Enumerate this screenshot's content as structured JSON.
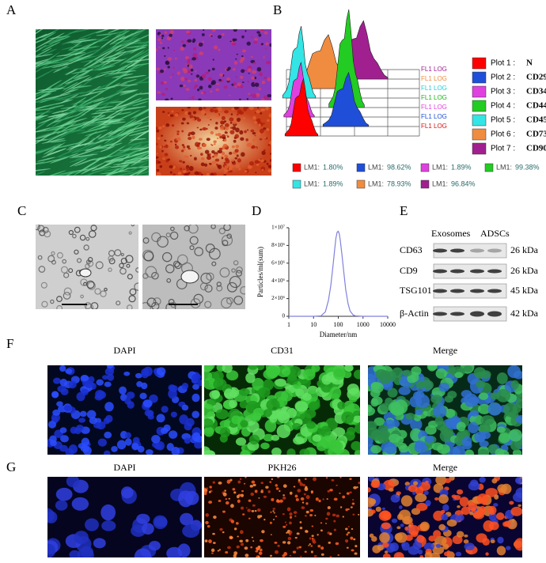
{
  "panel_labels": [
    "A",
    "B",
    "C",
    "D",
    "E",
    "F",
    "G"
  ],
  "flow": {
    "axis_labels": [
      {
        "text": "FL1 LOG",
        "color": "#a0208f"
      },
      {
        "text": "FL1 LOG",
        "color": "#f08c40"
      },
      {
        "text": "FL1 LOG",
        "color": "#20d0d8"
      },
      {
        "text": "FL1 LOG",
        "color": "#18b818"
      },
      {
        "text": "FL1 LOG",
        "color": "#e040e0"
      },
      {
        "text": "FL1 LOG",
        "color": "#1f4fd8"
      },
      {
        "text": "FL1 LOG",
        "color": "#e01010"
      }
    ],
    "legend": [
      {
        "plot": "Plot 1 :",
        "marker": "N",
        "color": "#ff0000"
      },
      {
        "plot": "Plot 2 :",
        "marker": "CD29",
        "color": "#1f4fd8"
      },
      {
        "plot": "Plot 3 :",
        "marker": "CD34",
        "color": "#e040e0"
      },
      {
        "plot": "Plot 4 :",
        "marker": "CD44",
        "color": "#22cc22"
      },
      {
        "plot": "Plot 5 :",
        "marker": "CD45",
        "color": "#33e5e5"
      },
      {
        "plot": "Plot 6 :",
        "marker": "CD73",
        "color": "#f08c40"
      },
      {
        "plot": "Plot 7 :",
        "marker": "CD90",
        "color": "#a0208f"
      }
    ],
    "stats": [
      {
        "label": "LM1:",
        "value": "1.80%",
        "color": "#ff0000"
      },
      {
        "label": "LM1:",
        "value": "98.62%",
        "color": "#1f4fd8"
      },
      {
        "label": "LM1:",
        "value": "1.89%",
        "color": "#e040e0"
      },
      {
        "label": "LM1:",
        "value": "99.38%",
        "color": "#22cc22"
      },
      {
        "label": "LM1:",
        "value": "1.89%",
        "color": "#33e5e5"
      },
      {
        "label": "LM1:",
        "value": "78.93%",
        "color": "#f08c40"
      },
      {
        "label": "LM1:",
        "value": "96.84%",
        "color": "#a0208f"
      }
    ]
  },
  "chart_data": {
    "type": "line",
    "ylabel": "Particles/ml(sum)",
    "xlabel": "Diameter/nm",
    "xlog": true,
    "xlim": [
      1,
      10000
    ],
    "xticks": [
      1,
      10,
      100,
      1000,
      10000
    ],
    "ylim": [
      0,
      10000000
    ],
    "yticks": [
      0,
      {
        "value": 2000000,
        "label": "2×10⁶"
      },
      {
        "value": 4000000,
        "label": "4×10⁶"
      },
      {
        "value": 6000000,
        "label": "6×10⁶"
      },
      {
        "value": 8000000,
        "label": "8×10⁶"
      },
      {
        "value": 10000000,
        "label": "1×10⁷"
      }
    ],
    "color": "#8080e0",
    "x": [
      1,
      10,
      20,
      30,
      40,
      50,
      60,
      70,
      80,
      90,
      100,
      110,
      120,
      140,
      170,
      200,
      250,
      300,
      400,
      500,
      1000,
      10000
    ],
    "values": [
      0,
      0,
      50000,
      500000,
      1800000,
      3500000,
      5500000,
      7300000,
      8800000,
      9500000,
      9600000,
      9300000,
      8600000,
      7000000,
      4800000,
      3000000,
      1400000,
      600000,
      150000,
      50000,
      0,
      0
    ]
  },
  "western": {
    "columns": [
      "Exosomes",
      "ADSCs"
    ],
    "rows": [
      {
        "protein": "CD63",
        "size": "26 kDa"
      },
      {
        "protein": "CD9",
        "size": "26 kDa"
      },
      {
        "protein": "TSG101",
        "size": "45 kDa"
      },
      {
        "protein": "β-Actin",
        "size": "42 kDa"
      }
    ]
  },
  "fluorescence": {
    "F": [
      "DAPI",
      "CD31",
      "Merge"
    ],
    "G": [
      "DAPI",
      "PKH26",
      "Merge"
    ]
  }
}
